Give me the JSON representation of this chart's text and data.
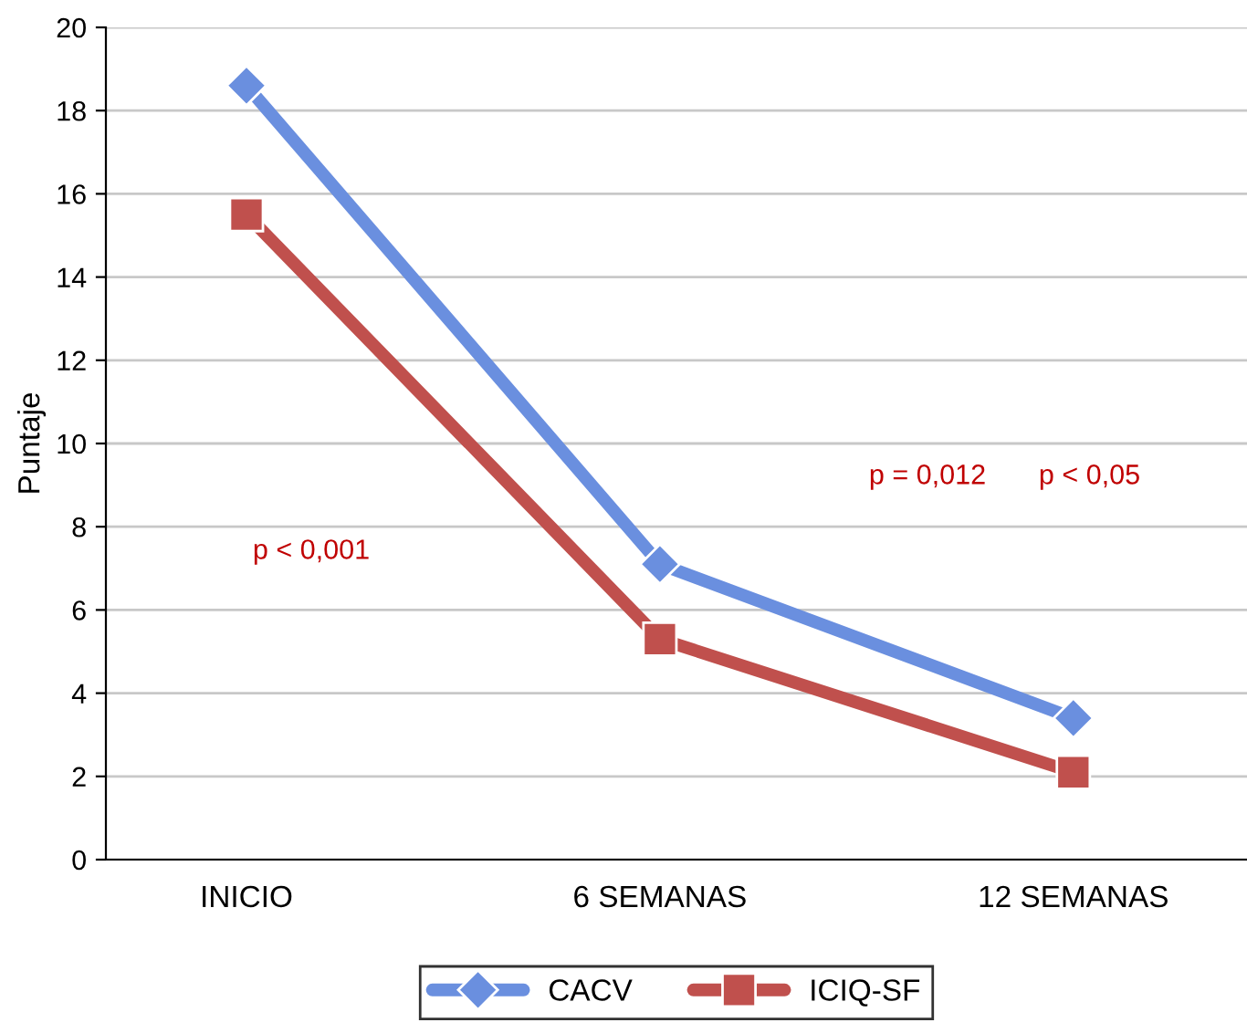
{
  "chart_data": {
    "type": "line",
    "ylabel": "Puntaje",
    "categories": [
      "INICIO",
      "6 SEMANAS",
      "12 SEMANAS"
    ],
    "series": [
      {
        "name": "CACV",
        "color": "#6a8fdf",
        "marker": "diamond",
        "values": [
          18.6,
          7.1,
          3.4
        ]
      },
      {
        "name": "ICIQ-SF",
        "color": "#c0504d",
        "marker": "square",
        "values": [
          15.5,
          5.3,
          2.1
        ]
      }
    ],
    "ylim": [
      0,
      20
    ],
    "yticks": [
      0,
      2,
      4,
      6,
      8,
      10,
      12,
      14,
      16,
      18,
      20
    ],
    "grid": "y",
    "legend": "bottom",
    "annotations": [
      "p < 0,001",
      "p = 0,012",
      "p < 0,05"
    ]
  }
}
